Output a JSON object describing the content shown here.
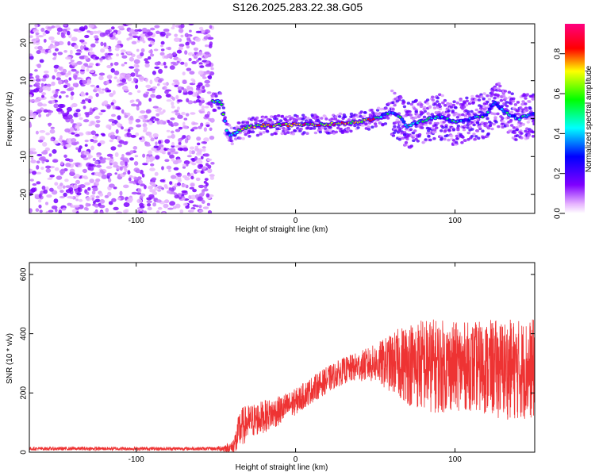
{
  "title": "S126.2025.283.22.38.G05",
  "chart_data": [
    {
      "type": "heatmap",
      "xlabel": "Height of straight line (km)",
      "ylabel": "Frequency (Hz)",
      "xlim": [
        -167,
        150
      ],
      "ylim": [
        -25,
        25
      ],
      "x_ticks": [
        -100,
        0,
        100
      ],
      "y_ticks": [
        -20,
        -10,
        0,
        10,
        20
      ],
      "colorbar_label": "Normalized spectral amplitude",
      "colorbar_range": [
        0.0,
        0.95
      ],
      "colorbar_ticks": [
        "0.0",
        "0.2",
        "0.4",
        "0.6",
        "0.8"
      ],
      "noise_region_x_max": -52,
      "ridge": {
        "x": [
          -52,
          -47,
          -43,
          -40,
          -37,
          -30,
          -20,
          -10,
          0,
          10,
          20,
          30,
          40,
          50,
          55,
          60,
          65,
          70,
          80,
          90,
          100,
          110,
          120,
          125,
          130,
          140,
          150
        ],
        "frequency": [
          4.5,
          4.5,
          -3.5,
          -4.5,
          -3.5,
          -2.3,
          -1.8,
          -1.7,
          -1.6,
          -1.5,
          -1.5,
          -1.2,
          -0.8,
          0.0,
          0.8,
          1.8,
          0.5,
          -2.0,
          -0.5,
          0.5,
          -1.0,
          0.0,
          1.0,
          4.5,
          2.0,
          0.0,
          1.5
        ]
      }
    },
    {
      "type": "line",
      "xlabel": "Height of straight line (km)",
      "ylabel": "SNR (10 * v/v)",
      "xlim": [
        -167,
        150
      ],
      "ylim": [
        0,
        640
      ],
      "x_ticks": [
        -100,
        0,
        100
      ],
      "y_ticks": [
        0,
        200,
        400,
        600
      ],
      "color": "#ee3333",
      "series": [
        {
          "name": "SNR",
          "envelope_x": [
            -167,
            -100,
            -50,
            -40,
            -37,
            -35,
            -30,
            -20,
            -10,
            0,
            10,
            20,
            30,
            40,
            50,
            60,
            70,
            80,
            90,
            100,
            110,
            120,
            130,
            140,
            150
          ],
          "envelope_mean": [
            12,
            12,
            12,
            15,
            40,
            80,
            100,
            120,
            140,
            170,
            210,
            245,
            275,
            290,
            300,
            300,
            300,
            295,
            290,
            290,
            290,
            285,
            280,
            280,
            280
          ],
          "envelope_spread": [
            6,
            6,
            6,
            20,
            50,
            70,
            60,
            55,
            50,
            45,
            45,
            45,
            45,
            50,
            65,
            100,
            140,
            160,
            160,
            150,
            150,
            160,
            170,
            170,
            170
          ]
        }
      ]
    }
  ]
}
